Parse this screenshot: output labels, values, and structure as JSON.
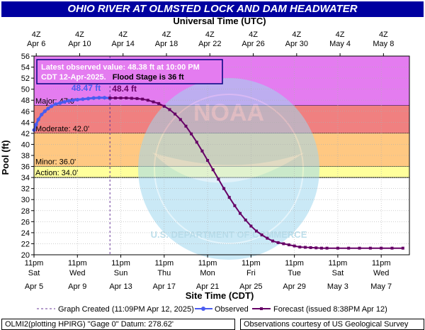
{
  "title": "OHIO RIVER AT OLMSTED LOCK AND DAM HEADWATER",
  "colors": {
    "title_bg": "#0000a0",
    "major": "#e47cf0",
    "moderate": "#f08080",
    "minor": "#ffc882",
    "action": "#ffff9c",
    "observed": "#4a5cf0",
    "forecast": "#660066",
    "watermark": "#9fd8f0"
  },
  "info_box": {
    "line1": "Latest observed value: 48.38 ft at 10:00 PM",
    "line2_date": "CDT 12-Apr-2025.",
    "line2_flood": "Flood Stage is 36 ft"
  },
  "watermark_text": {
    "top": "NATIONAL OCEANIC AND ATMOSPHERIC ADMINISTRATION",
    "bottom": "U.S. DEPARTMENT OF COMMERCE",
    "center": "NOAA"
  },
  "legend": {
    "graph_created": "Graph Created (11:09PM Apr 12, 2025)",
    "observed": "Observed",
    "forecast": "Forecast (issued 8:38PM Apr 12)"
  },
  "footer": {
    "left": "OLMI2(plotting HPIRG) \"Gage 0\" Datum: 278.62'",
    "right": "Observations courtesy of US Geological Survey"
  },
  "chart_data": {
    "type": "line",
    "title": "OHIO RIVER AT OLMSTED LOCK AND DAM HEADWATER",
    "xlabel": "Site Time (CDT)",
    "x2label": "Universal Time (UTC)",
    "ylabel": "Pool (ft)",
    "ylim": [
      20,
      56
    ],
    "yticks": [
      20,
      22,
      24,
      26,
      28,
      30,
      32,
      34,
      36,
      38,
      40,
      42,
      44,
      46,
      48,
      50,
      52,
      54,
      56
    ],
    "x_range_days_from_apr5_23cdt": [
      0,
      34.6
    ],
    "bottom_ticks": [
      {
        "l1": "11pm",
        "l2": "Sat",
        "l3": "Apr 5"
      },
      {
        "l1": "11pm",
        "l2": "Wed",
        "l3": "Apr 9"
      },
      {
        "l1": "11pm",
        "l2": "Sun",
        "l3": "Apr 13"
      },
      {
        "l1": "11pm",
        "l2": "Thu",
        "l3": "Apr 17"
      },
      {
        "l1": "11pm",
        "l2": "Mon",
        "l3": "Apr 21"
      },
      {
        "l1": "11pm",
        "l2": "Fri",
        "l3": "Apr 25"
      },
      {
        "l1": "11pm",
        "l2": "Tue",
        "l3": "Apr 29"
      },
      {
        "l1": "11pm",
        "l2": "Sat",
        "l3": "May 3"
      },
      {
        "l1": "11pm",
        "l2": "Wed",
        "l3": "May 7"
      }
    ],
    "top_ticks": [
      {
        "l1": "4Z",
        "l2": "Apr  6"
      },
      {
        "l1": "4Z",
        "l2": "Apr 10"
      },
      {
        "l1": "4Z",
        "l2": "Apr 14"
      },
      {
        "l1": "4Z",
        "l2": "Apr 18"
      },
      {
        "l1": "4Z",
        "l2": "Apr 22"
      },
      {
        "l1": "4Z",
        "l2": "Apr 26"
      },
      {
        "l1": "4Z",
        "l2": "Apr 30"
      },
      {
        "l1": "4Z",
        "l2": "May  4"
      },
      {
        "l1": "4Z",
        "l2": "May  8"
      }
    ],
    "flood_categories": [
      {
        "name": "Major",
        "label": "Major: 47.0'",
        "from": 47,
        "to": 56
      },
      {
        "name": "Moderate",
        "label": "Moderate: 42.0'",
        "from": 42,
        "to": 47
      },
      {
        "name": "Minor",
        "label": "Minor: 36.0'",
        "from": 36,
        "to": 42
      },
      {
        "name": "Action",
        "label": "Action: 34.0'",
        "from": 34,
        "to": 36
      }
    ],
    "graph_created_day": 7.0,
    "annotations": {
      "observed_peak": "48.47 ft",
      "forecast_peak": "48.4 ft"
    },
    "observed": {
      "x": [
        0.0,
        0.2,
        0.4,
        0.7,
        1.0,
        1.3,
        1.6,
        2.0,
        2.4,
        2.8,
        3.2,
        3.6,
        4.0,
        4.5,
        5.0,
        5.5,
        6.0,
        6.5,
        7.0
      ],
      "y": [
        42.6,
        43.6,
        44.5,
        45.4,
        46.0,
        46.5,
        46.9,
        47.3,
        47.5,
        47.7,
        47.9,
        48.0,
        48.1,
        48.2,
        48.3,
        48.4,
        48.45,
        48.45,
        48.38
      ]
    },
    "forecast": {
      "x": [
        7.0,
        7.5,
        8.0,
        8.5,
        9.0,
        9.5,
        10.0,
        10.5,
        11.0,
        11.5,
        12.0,
        12.5,
        13.0,
        13.5,
        14.0,
        14.5,
        15.0,
        15.5,
        16.0,
        16.5,
        17.0,
        17.5,
        18.0,
        18.5,
        19.0,
        19.5,
        20.0,
        20.5,
        21.0,
        21.5,
        22.0,
        22.5,
        23.0,
        23.5,
        24.0,
        24.5,
        25.0,
        25.5,
        26.0,
        26.5,
        27.0,
        28.0,
        29.0,
        30.0,
        31.0,
        32.0,
        33.0,
        34.0
      ],
      "y": [
        48.4,
        48.4,
        48.4,
        48.4,
        48.35,
        48.3,
        48.2,
        48.0,
        47.7,
        47.4,
        46.9,
        46.3,
        45.5,
        44.5,
        43.3,
        41.9,
        40.4,
        38.8,
        37.1,
        35.4,
        33.7,
        32.0,
        30.4,
        28.9,
        27.5,
        26.3,
        25.2,
        24.3,
        23.6,
        23.0,
        22.5,
        22.2,
        22.0,
        21.8,
        21.6,
        21.4,
        21.35,
        21.3,
        21.25,
        21.2,
        21.2,
        21.2,
        21.2,
        21.2,
        21.2,
        21.2,
        21.2,
        21.2
      ]
    }
  }
}
